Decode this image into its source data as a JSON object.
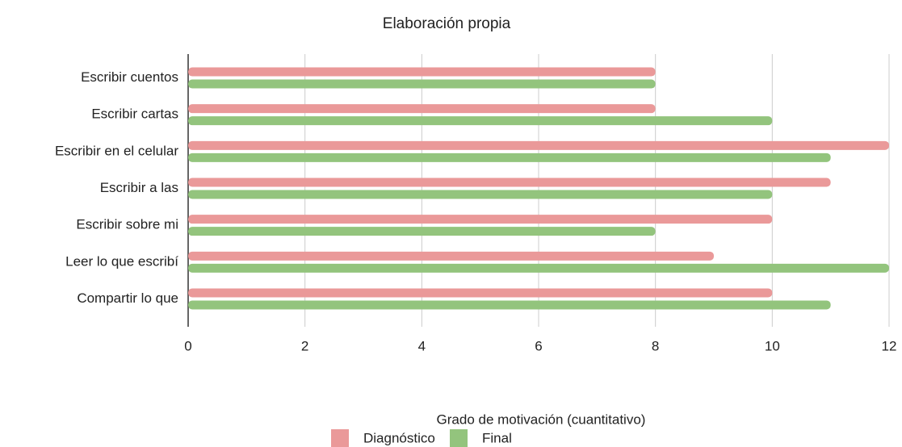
{
  "chart_data": {
    "type": "bar",
    "orientation": "horizontal",
    "title": "Elaboración propia",
    "xlabel": "Grado de motivación (cuantitativo)",
    "categories": [
      "Escribir cuentos",
      "Escribir cartas",
      "Escribir en el celular",
      "Escribir a las",
      "Escribir sobre mi",
      "Leer lo que escribí",
      "Compartir lo que"
    ],
    "series": [
      {
        "name": "Diagnóstico",
        "color": "#ea9999",
        "values": [
          8,
          8,
          12,
          11,
          10,
          9,
          10
        ]
      },
      {
        "name": "Final",
        "color": "#93c47d",
        "values": [
          8,
          10,
          11,
          10,
          8,
          12,
          11
        ]
      }
    ],
    "xlim": [
      0,
      12
    ],
    "xticks": [
      0,
      2,
      4,
      6,
      8,
      10,
      12
    ],
    "grid": true,
    "legend": "bottom"
  }
}
